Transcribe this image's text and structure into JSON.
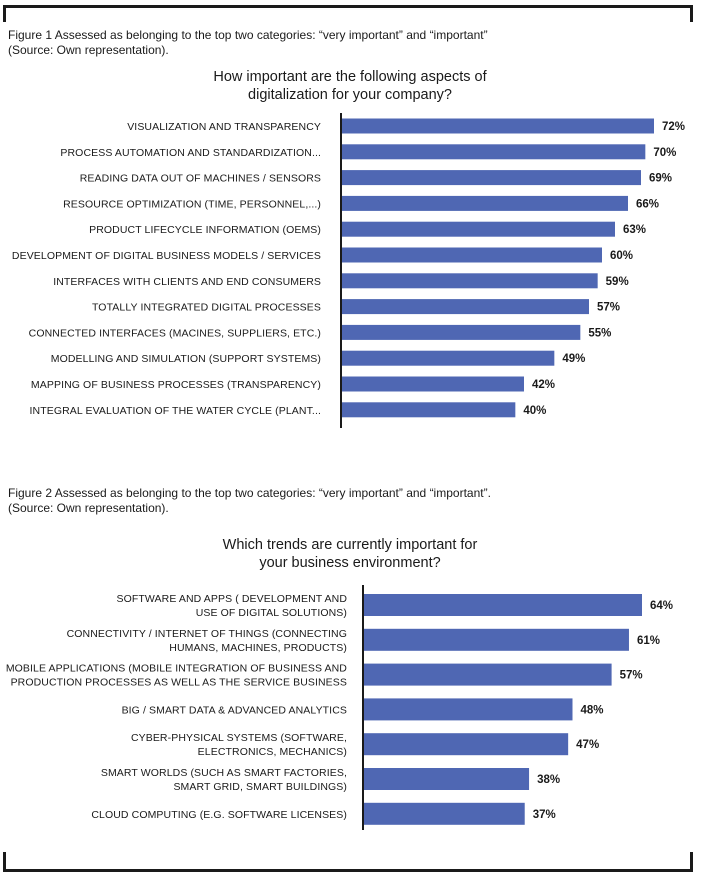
{
  "figure1": {
    "caption_line1": "Figure 1 Assessed as belonging to the top two categories: “very important” and “important”",
    "caption_line2": "(Source: Own representation).",
    "title_line1": "How important are the following aspects of",
    "title_line2": "digitalization for your company?"
  },
  "figure2": {
    "caption_line1": "Figure 2 Assessed as belonging to the top two categories: “very important” and “important”.",
    "caption_line2": "(Source: Own representation).",
    "title_line1": "Which trends are currently important for",
    "title_line2": "your business environment?"
  },
  "colors": {
    "bar": "#4f67b3",
    "axis": "#1a1a1a"
  },
  "chart_data": [
    {
      "type": "bar",
      "orientation": "horizontal",
      "title": "How important are the following aspects of digitalization for your company?",
      "categories": [
        "VISUALIZATION AND TRANSPARENCY",
        "PROCESS AUTOMATION AND STANDARDIZATION...",
        "READING DATA OUT OF MACHINES / SENSORS",
        "RESOURCE OPTIMIZATION (TIME, PERSONNEL,...)",
        "PRODUCT LIFECYCLE INFORMATION (OEMS)",
        "DEVELOPMENT OF DIGITAL BUSINESS MODELS / SERVICES",
        "INTERFACES WITH CLIENTS AND END CONSUMERS",
        "TOTALLY INTEGRATED DIGITAL PROCESSES",
        "CONNECTED INTERFACES (MACINES, SUPPLIERS, ETC.)",
        "MODELLING AND SIMULATION (SUPPORT SYSTEMS)",
        "MAPPING OF BUSINESS PROCESSES (TRANSPARENCY)",
        "INTEGRAL EVALUATION OF THE WATER CYCLE (PLANT..."
      ],
      "values": [
        72,
        70,
        69,
        66,
        63,
        60,
        59,
        57,
        55,
        49,
        42,
        40
      ],
      "value_labels": [
        "72%",
        "70%",
        "69%",
        "66%",
        "63%",
        "60%",
        "59%",
        "57%",
        "55%",
        "49%",
        "42%",
        "40%"
      ],
      "xlim": [
        0,
        75
      ]
    },
    {
      "type": "bar",
      "orientation": "horizontal",
      "title": "Which trends are currently important for your business environment?",
      "categories": [
        [
          "SOFTWARE AND APPS ( DEVELOPMENT AND",
          "USE OF DIGITAL SOLUTIONS)"
        ],
        [
          "CONNECTIVITY / INTERNET OF THINGS (CONNECTING",
          "HUMANS, MACHINES, PRODUCTS)"
        ],
        [
          "MOBILE APPLICATIONS (MOBILE INTEGRATION OF BUSINESS AND",
          "PRODUCTION PROCESSES AS WELL AS THE SERVICE BUSINESS"
        ],
        [
          "BIG / SMART DATA & ADVANCED ANALYTICS"
        ],
        [
          "CYBER-PHYSICAL SYSTEMS (SOFTWARE,",
          "ELECTRONICS, MECHANICS)"
        ],
        [
          "SMART WORLDS (SUCH AS SMART FACTORIES,",
          "SMART GRID, SMART BUILDINGS)"
        ],
        [
          "CLOUD COMPUTING (E.G. SOFTWARE LICENSES)"
        ]
      ],
      "values": [
        64,
        61,
        57,
        48,
        47,
        38,
        37
      ],
      "value_labels": [
        "64%",
        "61%",
        "57%",
        "48%",
        "47%",
        "38%",
        "37%"
      ],
      "xlim": [
        0,
        75
      ]
    }
  ]
}
